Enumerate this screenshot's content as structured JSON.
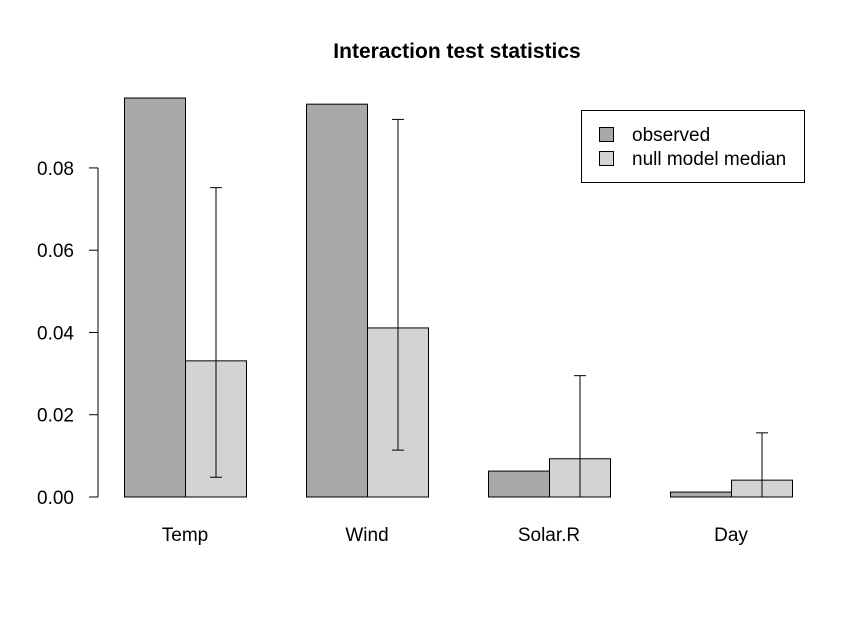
{
  "chart_data": {
    "type": "bar",
    "title": "Interaction test statistics",
    "xlabel": "",
    "ylabel": "",
    "categories": [
      "Temp",
      "Wind",
      "Solar.R",
      "Day"
    ],
    "series": [
      {
        "name": "observed",
        "values": [
          0.097,
          0.0955,
          0.0063,
          0.0012
        ],
        "color": "#a9a9a9"
      },
      {
        "name": "null model median",
        "values": [
          0.0331,
          0.0411,
          0.0093,
          0.0041
        ],
        "color": "#d3d3d3",
        "error_low": [
          0.0048,
          0.0114,
          0.0,
          0.0
        ],
        "error_high": [
          0.0752,
          0.0918,
          0.0295,
          0.0156
        ]
      }
    ],
    "ylim": [
      0,
      0.097
    ],
    "yticks": [
      0.0,
      0.02,
      0.04,
      0.06,
      0.08
    ],
    "ytick_labels": [
      "0.00",
      "0.02",
      "0.04",
      "0.06",
      "0.08"
    ],
    "legend_position": "top-right",
    "grid": false
  }
}
